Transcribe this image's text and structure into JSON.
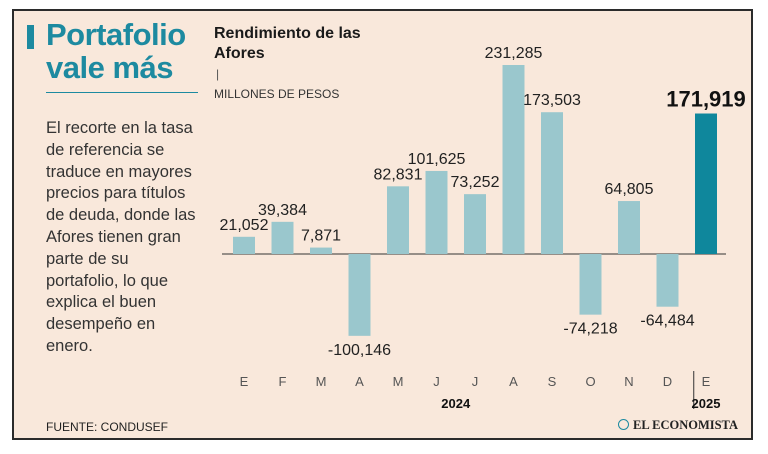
{
  "headline": {
    "line1": "Portafolio",
    "line2": "vale más"
  },
  "body_text": "El recorte en la tasa de referencia se traduce en mayores precios para títulos de deuda, donde las Afores tienen gran parte de su portafolio, lo que explica el buen desempeño en enero.",
  "source": "FUENTE: CONDUSEF",
  "brand": "EL ECONOMISTA",
  "colors": {
    "background": "#f9e8db",
    "accent": "#1d8aa0",
    "bar": "#9ac7cd",
    "highlight_bar": "#0f879c"
  },
  "chart_data": {
    "type": "bar",
    "title_line1": "Rendimiento de las",
    "title_line2": "Afores",
    "unit": "MILLONES DE PESOS",
    "categories": [
      "E",
      "F",
      "M",
      "A",
      "M",
      "J",
      "J",
      "A",
      "S",
      "O",
      "N",
      "D",
      "E"
    ],
    "values": [
      21052,
      39384,
      7871,
      -100146,
      82831,
      101625,
      73252,
      231285,
      173503,
      -74218,
      64805,
      -64484,
      171919
    ],
    "value_labels": [
      "21,052",
      "39,384",
      "7,871",
      "-100,146",
      "82,831",
      "101,625",
      "73,252",
      "231,285",
      "173,503",
      "-74,218",
      "64,805",
      "-64,484",
      "171,919"
    ],
    "highlight_index": 12,
    "year_labels": [
      {
        "label": "2024",
        "under_index": 5.5
      },
      {
        "label": "2025",
        "under_index": 12
      }
    ],
    "year_separator_after_index": 11,
    "ylim": [
      -100146,
      231285
    ],
    "grid": false,
    "baseline": true
  }
}
